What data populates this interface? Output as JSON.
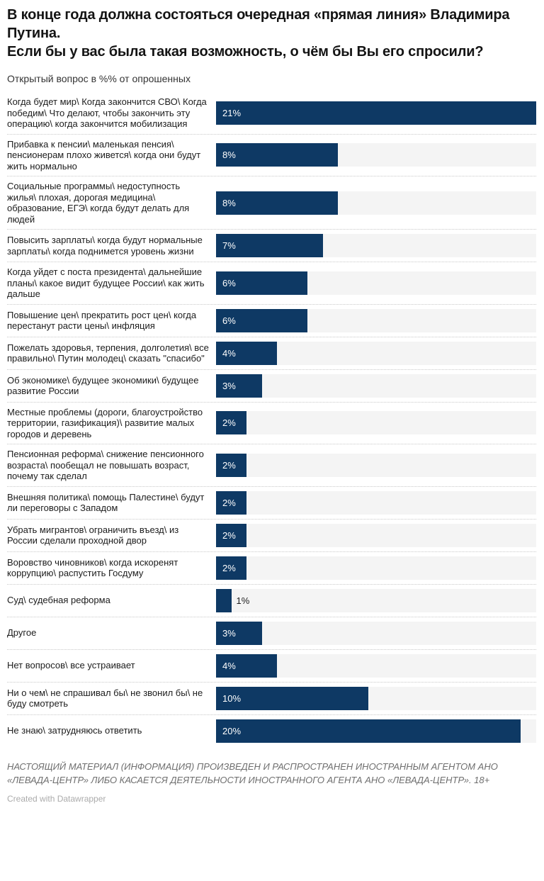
{
  "header": {
    "title": "В конце года должна состояться очередная «прямая линия» Владимира Путина.\nЕсли бы у вас была такая возможность, о чём бы Вы его спросили?",
    "subtitle": "Открытый вопрос в %% от опрошенных"
  },
  "chart_data": {
    "type": "bar",
    "orientation": "horizontal",
    "unit": "%",
    "xlim": [
      0,
      21
    ],
    "grid": false,
    "legend": "none",
    "bar_color": "#0e3964",
    "track_color": "#f4f4f4",
    "value_label_inside_color": "#ffffff",
    "value_label_outside_color": "#1c1c1c",
    "categories": [
      "Когда будет мир\\ Когда закончится СВО\\ Когда победим\\ Что делают, чтобы закончить эту операцию\\ когда закончится мобилизация",
      "Прибавка к пенсии\\ маленькая пенсия\\ пенсионерам плохо живется\\ когда они будут жить нормально",
      "Социальные программы\\ недоступность жилья\\ плохая, дорогая медицина\\ образование, ЕГЭ\\ когда будут делать для людей",
      "Повысить зарплаты\\ когда будут нормальные зарплаты\\ когда поднимется уровень жизни",
      "Когда уйдет с поста президента\\ дальнейшие планы\\ какое видит будущее России\\ как жить дальше",
      "Повышение цен\\ прекратить рост цен\\ когда перестанут расти цены\\ инфляция",
      "Пожелать здоровья, терпения, долголетия\\ все правильно\\ Путин молодец\\ сказать \"спасибо\"",
      "Об экономике\\ будущее экономики\\ будущее развитие России",
      "Местные проблемы (дороги, благоустройство территории, газификация)\\ развитие малых городов и деревень",
      "Пенсионная реформа\\ снижение пенсионного возраста\\ пообещал не повышать возраст, почему так сделал",
      "Внешняя политика\\ помощь Палестине\\ будут ли переговоры с Западом",
      "Убрать мигрантов\\ ограничить въезд\\ из России сделали проходной двор",
      "Воровство чиновников\\ когда искоренят коррупцию\\ распустить Госдуму",
      "Суд\\ судебная реформа",
      "Другое",
      "Нет вопросов\\ все устраивает",
      "Ни о чем\\ не спрашивал бы\\ не звонил бы\\ не буду смотреть",
      "Не знаю\\ затрудняюсь ответить"
    ],
    "values": [
      21,
      8,
      8,
      7,
      6,
      6,
      4,
      3,
      2,
      2,
      2,
      2,
      2,
      1,
      3,
      4,
      10,
      20
    ],
    "value_labels": [
      "21%",
      "8%",
      "8%",
      "7%",
      "6%",
      "6%",
      "4%",
      "3%",
      "2%",
      "2%",
      "2%",
      "2%",
      "2%",
      "1%",
      "3%",
      "4%",
      "10%",
      "20%"
    ]
  },
  "footer": {
    "disclaimer": "НАСТОЯЩИЙ МАТЕРИАЛ (ИНФОРМАЦИЯ) ПРОИЗВЕДЕН И РАСПРОСТРАНЕН ИНОСТРАННЫМ АГЕНТОМ АНО «ЛЕВАДА-ЦЕНТР» ЛИБО КАСАЕТСЯ ДЕЯТЕЛЬНОСТИ ИНОСТРАННОГО АГЕНТА АНО «ЛЕВАДА-ЦЕНТР». 18+",
    "attribution": "Created with Datawrapper"
  }
}
